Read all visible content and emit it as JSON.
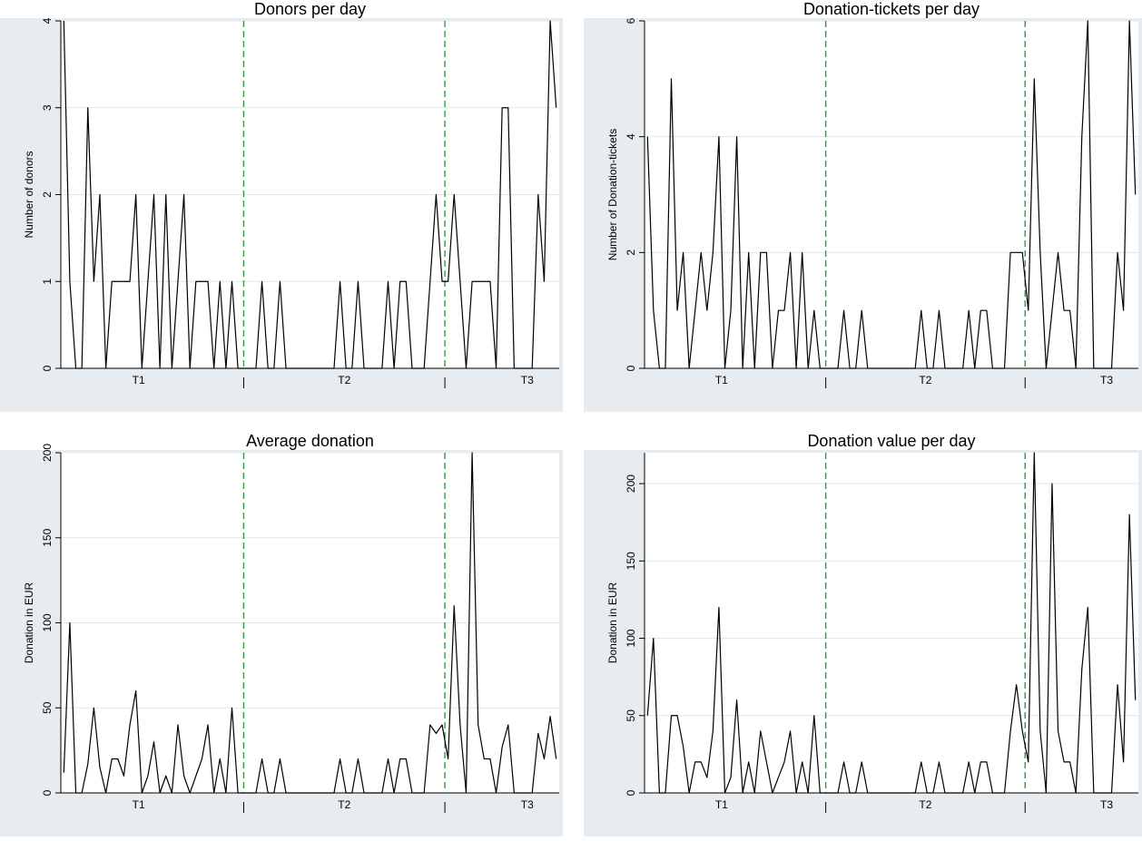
{
  "chart_data": [
    {
      "type": "line",
      "title": "Donors per day",
      "xlabel": "",
      "ylabel": "Number of donors",
      "ylim": [
        0,
        4
      ],
      "yticks": [
        0,
        1,
        2,
        3,
        4
      ],
      "grid": true,
      "line_color": "#000000",
      "divider_color": "#2e9e3f",
      "segments": [
        {
          "label": "T1",
          "at": 8.5
        },
        {
          "label": "T2",
          "at": 31
        },
        {
          "label": "T3",
          "at": 51
        }
      ],
      "dividers": [
        20,
        42
      ],
      "xlim": [
        0,
        54.5
      ],
      "y": [
        4,
        1,
        0,
        0,
        3,
        1,
        2,
        0,
        1,
        1,
        1,
        1,
        2,
        0,
        1,
        2,
        0,
        2,
        0,
        1,
        2,
        0,
        1,
        1,
        1,
        0,
        1,
        0,
        1,
        0,
        0,
        0,
        0,
        1,
        0,
        0,
        1,
        0,
        0,
        0,
        0,
        0,
        0,
        0,
        0,
        0,
        1,
        0,
        0,
        1,
        0,
        0,
        0,
        0,
        1,
        0,
        1,
        1,
        0,
        0,
        0,
        1,
        2,
        1,
        1,
        2,
        1,
        0,
        1,
        1,
        1,
        1,
        0,
        3,
        3,
        0,
        0,
        0,
        0,
        2,
        1,
        4,
        3
      ]
    },
    {
      "type": "line",
      "title": "Donation-tickets per day",
      "xlabel": "",
      "ylabel": "Number of Donation-tickets",
      "ylim": [
        0,
        6
      ],
      "yticks": [
        0,
        2,
        4,
        6
      ],
      "grid": true,
      "line_color": "#000000",
      "divider_color": "#2e9e3f",
      "segments": [
        {
          "label": "T1",
          "at": 8.5
        },
        {
          "label": "T2",
          "at": 31
        },
        {
          "label": "T3",
          "at": 51
        }
      ],
      "dividers": [
        20,
        42
      ],
      "xlim": [
        0,
        54.5
      ],
      "y": [
        4,
        1,
        0,
        0,
        5,
        1,
        2,
        0,
        1,
        2,
        1,
        2,
        4,
        0,
        1,
        4,
        0,
        2,
        0,
        2,
        2,
        0,
        1,
        1,
        2,
        0,
        2,
        0,
        1,
        0,
        0,
        0,
        0,
        1,
        0,
        0,
        1,
        0,
        0,
        0,
        0,
        0,
        0,
        0,
        0,
        0,
        1,
        0,
        0,
        1,
        0,
        0,
        0,
        0,
        1,
        0,
        1,
        1,
        0,
        0,
        0,
        2,
        2,
        2,
        1,
        5,
        2,
        0,
        1,
        2,
        1,
        1,
        0,
        4,
        6,
        0,
        0,
        0,
        0,
        2,
        1,
        6,
        3
      ]
    },
    {
      "type": "line",
      "title": "Average donation",
      "xlabel": "",
      "ylabel": "Donation in EUR",
      "ylim": [
        0,
        200
      ],
      "yticks": [
        0,
        50,
        100,
        150,
        200
      ],
      "grid": true,
      "line_color": "#000000",
      "divider_color": "#2e9e3f",
      "segments": [
        {
          "label": "T1",
          "at": 8.5
        },
        {
          "label": "T2",
          "at": 31
        },
        {
          "label": "T3",
          "at": 51
        }
      ],
      "dividers": [
        20,
        42
      ],
      "xlim": [
        0,
        54.5
      ],
      "y": [
        12,
        100,
        0,
        0,
        17,
        50,
        15,
        0,
        20,
        20,
        10,
        40,
        60,
        0,
        10,
        30,
        0,
        10,
        0,
        40,
        10,
        0,
        10,
        20,
        40,
        0,
        20,
        0,
        50,
        0,
        0,
        0,
        0,
        20,
        0,
        0,
        20,
        0,
        0,
        0,
        0,
        0,
        0,
        0,
        0,
        0,
        20,
        0,
        0,
        20,
        0,
        0,
        0,
        0,
        20,
        0,
        20,
        20,
        0,
        0,
        0,
        40,
        35,
        40,
        20,
        110,
        40,
        0,
        200,
        40,
        20,
        20,
        0,
        27,
        40,
        0,
        0,
        0,
        0,
        35,
        20,
        45,
        20
      ]
    },
    {
      "type": "line",
      "title": "Donation value per day",
      "xlabel": "",
      "ylabel": "Donation in EUR",
      "ylim": [
        0,
        220
      ],
      "yticks": [
        0,
        50,
        100,
        150,
        200
      ],
      "grid": true,
      "line_color": "#000000",
      "divider_color": "#2e9e3f",
      "segments": [
        {
          "label": "T1",
          "at": 8.5
        },
        {
          "label": "T2",
          "at": 31
        },
        {
          "label": "T3",
          "at": 51
        }
      ],
      "dividers": [
        20,
        42
      ],
      "xlim": [
        0,
        54.5
      ],
      "y": [
        50,
        100,
        0,
        0,
        50,
        50,
        30,
        0,
        20,
        20,
        10,
        40,
        120,
        0,
        10,
        60,
        0,
        20,
        0,
        40,
        20,
        0,
        10,
        20,
        40,
        0,
        20,
        0,
        50,
        0,
        0,
        0,
        0,
        20,
        0,
        0,
        20,
        0,
        0,
        0,
        0,
        0,
        0,
        0,
        0,
        0,
        20,
        0,
        0,
        20,
        0,
        0,
        0,
        0,
        20,
        0,
        20,
        20,
        0,
        0,
        0,
        40,
        70,
        40,
        20,
        220,
        40,
        0,
        200,
        40,
        20,
        20,
        0,
        80,
        120,
        0,
        0,
        0,
        0,
        70,
        20,
        180,
        60
      ]
    }
  ]
}
